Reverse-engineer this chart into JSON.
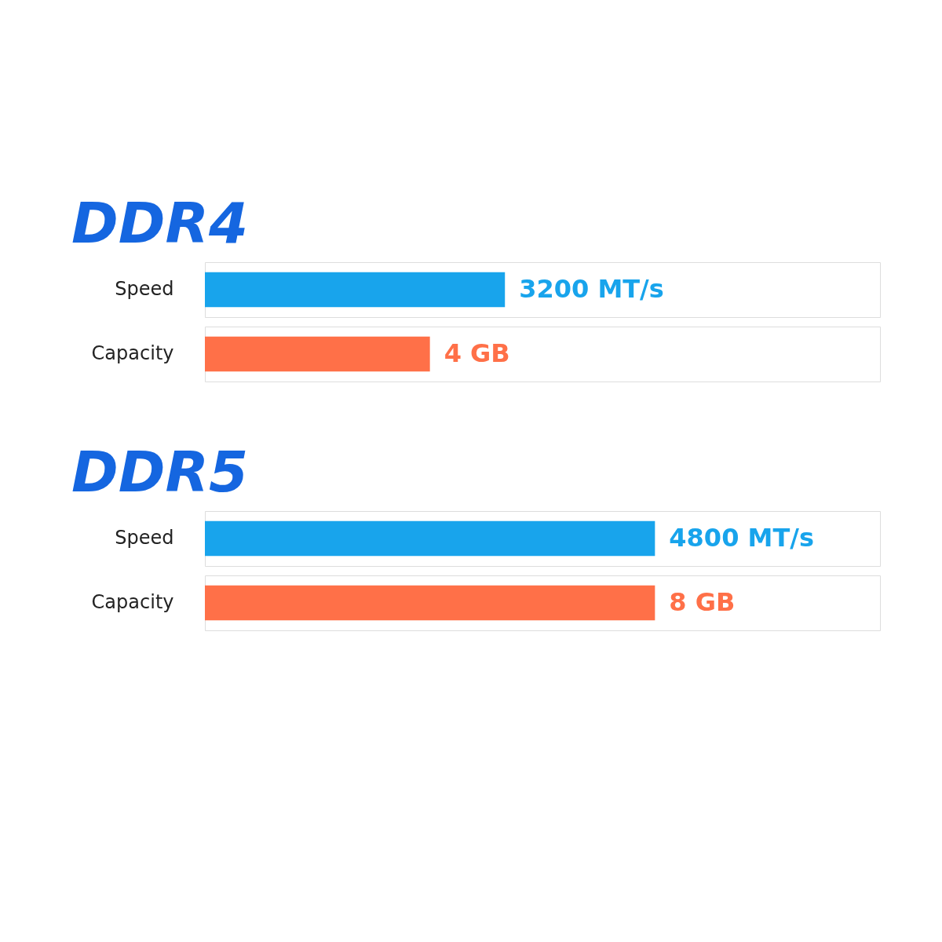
{
  "chart_data": [
    {
      "type": "bar",
      "orientation": "horizontal",
      "title": "DDR4",
      "categories": [
        "Speed"
      ],
      "tick_labels": "y",
      "series": [
        {
          "color": "#18a4ec",
          "values": [
            3200
          ],
          "value_labels": [
            "3200 MT/s"
          ]
        }
      ]
    },
    {
      "type": "bar",
      "orientation": "horizontal",
      "categories": [
        "Capacity"
      ],
      "tick_labels": "y",
      "series": [
        {
          "color": "#ff7048",
          "values": [
            4
          ],
          "value_labels": [
            "4 GB"
          ]
        }
      ]
    },
    {
      "type": "bar",
      "orientation": "horizontal",
      "title": "DDR5",
      "categories": [
        "Speed"
      ],
      "tick_labels": "y",
      "series": [
        {
          "color": "#18a4ec",
          "values": [
            4800
          ],
          "value_labels": [
            "4800 MT/s"
          ]
        }
      ]
    },
    {
      "type": "bar",
      "orientation": "horizontal",
      "categories": [
        "Capacity"
      ],
      "tick_labels": "y",
      "series": [
        {
          "color": "#ff7048",
          "values": [
            8
          ],
          "value_labels": [
            "8 GB"
          ]
        }
      ]
    }
  ]
}
